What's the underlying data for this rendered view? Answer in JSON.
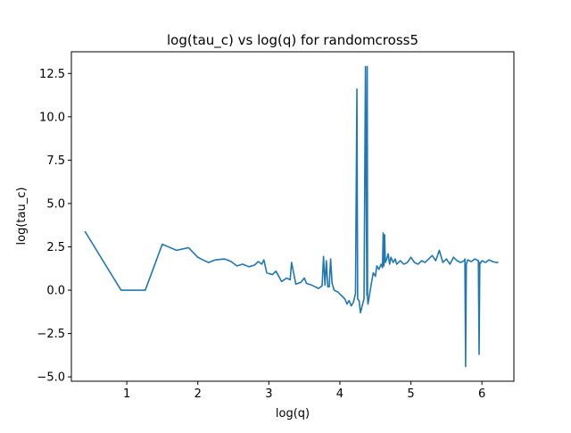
{
  "chart_data": {
    "type": "line",
    "title": "log(tau_c) vs log(q) for randomcross5",
    "xlabel": "log(q)",
    "ylabel": "log(tau_c)",
    "xlim": [
      0.22,
      6.45
    ],
    "ylim": [
      -5.25,
      13.75
    ],
    "xticks": [
      1,
      2,
      3,
      4,
      5,
      6
    ],
    "xtick_labels": [
      "1",
      "2",
      "3",
      "4",
      "5",
      "6"
    ],
    "yticks": [
      -5.0,
      -2.5,
      0.0,
      2.5,
      5.0,
      7.5,
      10.0,
      12.5
    ],
    "ytick_labels": [
      "−5.0",
      "−2.5",
      "0.0",
      "2.5",
      "5.0",
      "7.5",
      "10.0",
      "12.5"
    ],
    "grid": false,
    "series": [
      {
        "color": "#1f77b4",
        "x": [
          0.41,
          0.92,
          1.26,
          1.5,
          1.7,
          1.87,
          2.0,
          2.07,
          2.15,
          2.25,
          2.38,
          2.47,
          2.55,
          2.63,
          2.72,
          2.8,
          2.85,
          2.9,
          2.93,
          2.97,
          3.05,
          3.1,
          3.18,
          3.25,
          3.3,
          3.32,
          3.38,
          3.45,
          3.5,
          3.53,
          3.56,
          3.6,
          3.65,
          3.7,
          3.75,
          3.77,
          3.79,
          3.81,
          3.83,
          3.85,
          3.87,
          3.89,
          3.92,
          3.97,
          4.02,
          4.07,
          4.1,
          4.13,
          4.16,
          4.19,
          4.22,
          4.24,
          4.25,
          4.27,
          4.29,
          4.32,
          4.34,
          4.36,
          4.38,
          4.385,
          4.39,
          4.395,
          4.4,
          4.42,
          4.44,
          4.47,
          4.5,
          4.52,
          4.55,
          4.58,
          4.6,
          4.61,
          4.62,
          4.63,
          4.64,
          4.66,
          4.68,
          4.7,
          4.72,
          4.75,
          4.78,
          4.8,
          4.85,
          4.9,
          4.95,
          5.0,
          5.05,
          5.1,
          5.15,
          5.2,
          5.25,
          5.3,
          5.35,
          5.4,
          5.45,
          5.5,
          5.55,
          5.6,
          5.65,
          5.7,
          5.75,
          5.76,
          5.77,
          5.78,
          5.8,
          5.85,
          5.9,
          5.95,
          5.96,
          5.97,
          5.98,
          6.0,
          6.05,
          6.1,
          6.15,
          6.2,
          6.23
        ],
        "y": [
          3.4,
          0.0,
          0.0,
          2.65,
          2.3,
          2.45,
          1.9,
          1.75,
          1.6,
          1.75,
          1.8,
          1.65,
          1.4,
          1.5,
          1.35,
          1.45,
          1.65,
          1.5,
          1.75,
          1.0,
          0.9,
          1.1,
          0.5,
          0.7,
          0.6,
          1.6,
          0.35,
          0.45,
          0.7,
          0.4,
          0.35,
          0.3,
          0.2,
          0.1,
          0.25,
          1.95,
          0.3,
          1.7,
          0.2,
          0.2,
          1.8,
          0.4,
          0.0,
          -0.1,
          -0.3,
          -0.5,
          -0.8,
          -0.6,
          -0.9,
          -0.7,
          -0.2,
          11.6,
          -0.5,
          -0.6,
          -1.3,
          -0.8,
          -0.5,
          12.9,
          -0.3,
          12.9,
          -0.4,
          -0.8,
          -0.7,
          -0.2,
          0.3,
          1.0,
          0.8,
          1.4,
          1.2,
          1.5,
          1.3,
          3.3,
          1.4,
          3.2,
          1.6,
          1.8,
          2.1,
          1.5,
          1.9,
          1.6,
          1.8,
          1.5,
          1.7,
          1.5,
          1.6,
          1.9,
          1.6,
          1.5,
          1.7,
          1.6,
          1.8,
          2.0,
          1.7,
          2.3,
          1.6,
          1.8,
          1.5,
          1.9,
          1.7,
          1.6,
          1.7,
          1.8,
          -4.4,
          1.5,
          1.75,
          1.65,
          1.8,
          1.7,
          -3.7,
          1.6,
          1.55,
          1.7,
          1.6,
          1.75,
          1.65,
          1.6,
          1.6
        ]
      }
    ]
  }
}
